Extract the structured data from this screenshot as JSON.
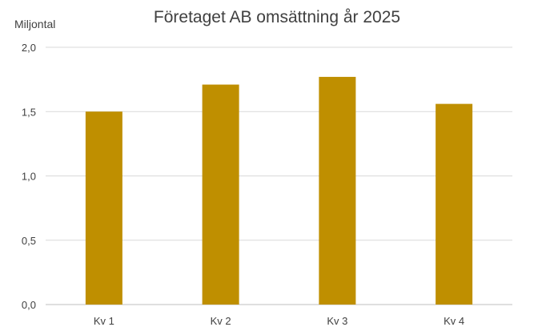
{
  "chart_data": {
    "type": "bar",
    "title": "Företaget AB omsättning år 2025",
    "ylabel": "Miljontal",
    "xlabel": "",
    "categories": [
      "Kv 1",
      "Kv 2",
      "Kv 3",
      "Kv 4"
    ],
    "values": [
      1.5,
      1.71,
      1.77,
      1.56
    ],
    "ylim": [
      0,
      2.0
    ],
    "yticks": [
      "0,0",
      "0,5",
      "1,0",
      "1,5",
      "2,0"
    ],
    "grid": true,
    "legend": "none",
    "bar_color": "#BF8F00"
  }
}
